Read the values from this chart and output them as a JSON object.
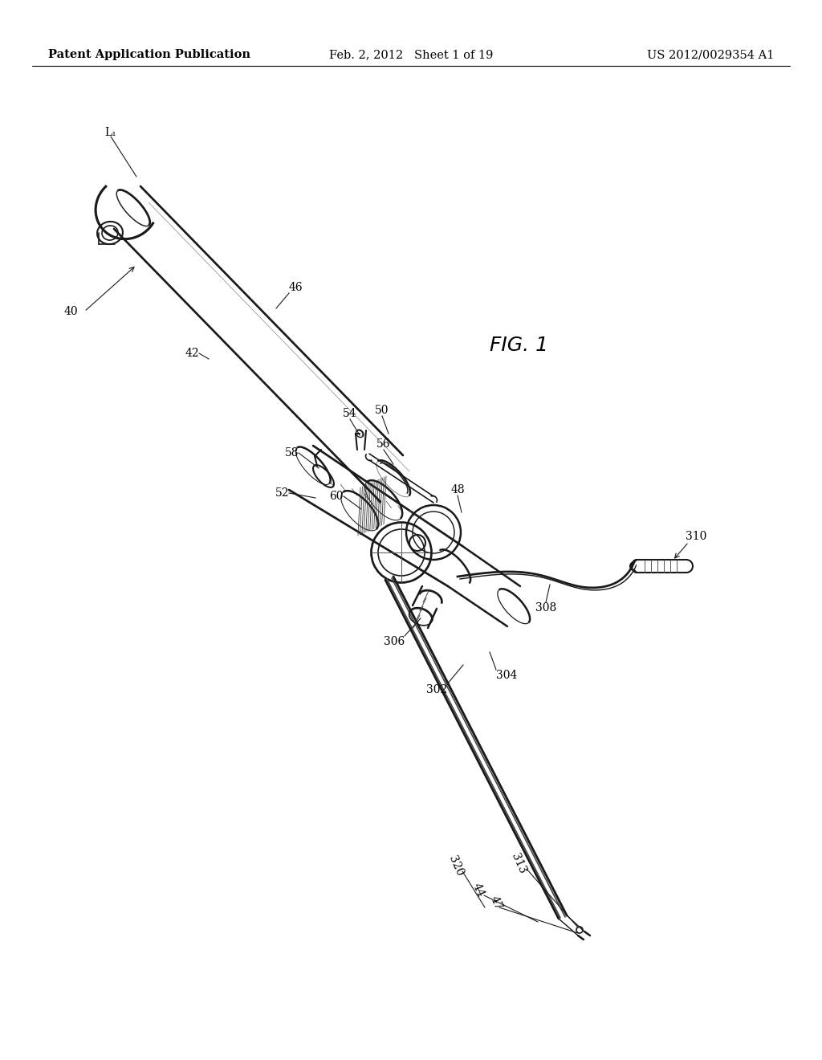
{
  "background_color": "#ffffff",
  "header_left": "Patent Application Publication",
  "header_center": "Feb. 2, 2012   Sheet 1 of 19",
  "header_right": "US 2012/0029354 A1",
  "figure_label": "FIG. 1",
  "line_color": "#1a1a1a",
  "line_width": 1.5,
  "text_color": "#000000",
  "header_fontsize": 10.5,
  "label_fontsize": 10,
  "fig_label_fontsize": 18
}
